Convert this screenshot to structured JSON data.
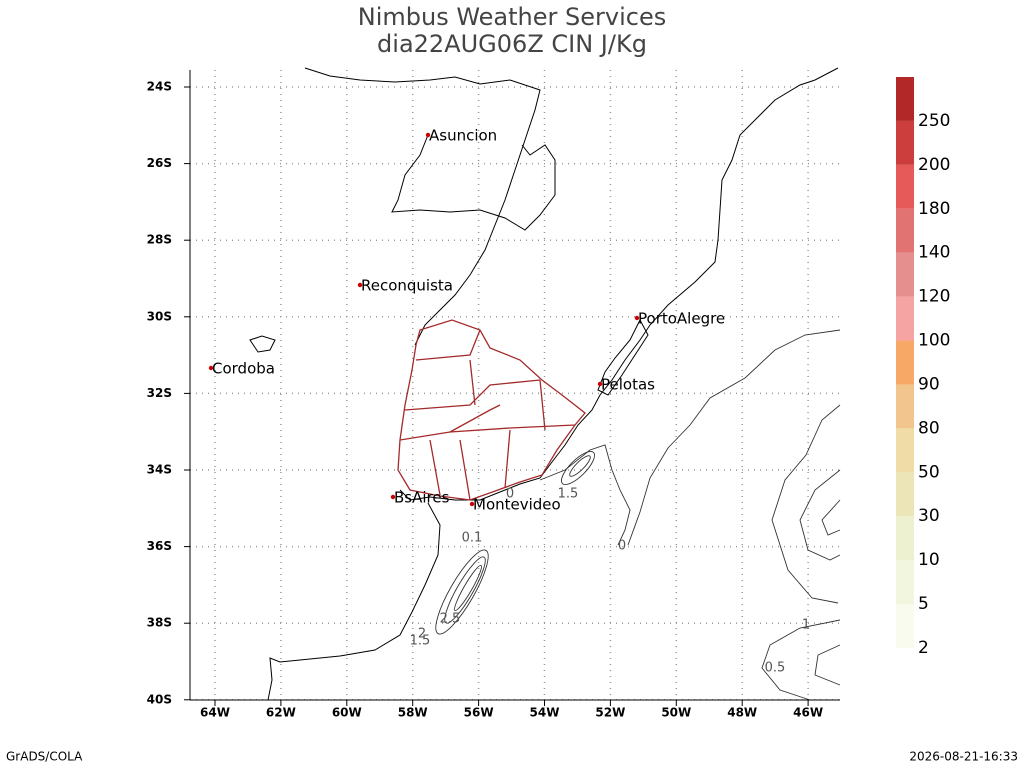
{
  "header": {
    "title": "Nimbus Weather Services",
    "subtitle": "dia22AUG06Z CIN J/Kg"
  },
  "map": {
    "lat_ticks": [
      "24S",
      "26S",
      "28S",
      "30S",
      "32S",
      "34S",
      "36S",
      "38S",
      "40S"
    ],
    "lon_ticks": [
      "64W",
      "62W",
      "60W",
      "58W",
      "56W",
      "54W",
      "52W",
      "50W",
      "48W",
      "46W"
    ],
    "cities": [
      "Asuncion",
      "Reconquista",
      "Cordoba",
      "PortoAlegre",
      "Pelotas",
      "BsAires",
      "Montevideo"
    ],
    "contour_labels": [
      "0.1",
      "0",
      "1.5",
      "2.5",
      "2",
      "1.5",
      "0",
      "1",
      "0.5"
    ]
  },
  "colorbar": {
    "labels": [
      "2",
      "5",
      "10",
      "30",
      "50",
      "80",
      "90",
      "100",
      "120",
      "140",
      "180",
      "200",
      "250"
    ],
    "colors": [
      "#f8fbee",
      "#f2f6df",
      "#eef1cf",
      "#ece5b8",
      "#f0dca6",
      "#f3c58e",
      "#f8a866",
      "#f5a3a3",
      "#e58f8f",
      "#e27373",
      "#e65a5a",
      "#cc3d3d",
      "#b22828"
    ]
  },
  "footer": {
    "left": "GrADS/COLA",
    "right": "2026-08-21-16:33"
  }
}
